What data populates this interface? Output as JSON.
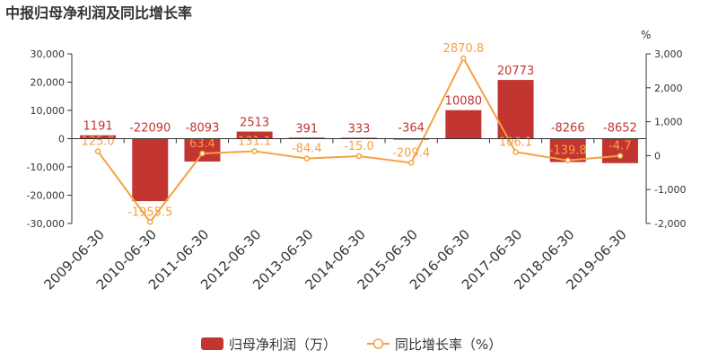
{
  "chart_data": {
    "type": "bar",
    "title": "中报归母净利润及同比增长率",
    "categories": [
      "2009-06-30",
      "2010-06-30",
      "2011-06-30",
      "2012-06-30",
      "2013-06-30",
      "2014-06-30",
      "2015-06-30",
      "2016-06-30",
      "2017-06-30",
      "2018-06-30",
      "2019-06-30"
    ],
    "series": [
      {
        "name": "归母净利润（万）",
        "type": "bar",
        "axis": "left",
        "color": "#c23531",
        "values": [
          1191,
          -22090,
          -8093,
          2513,
          391,
          333,
          -364,
          10080,
          20773,
          -8266,
          -8652
        ],
        "labels": [
          "1191",
          "-22090",
          "-8093",
          "2513",
          "391",
          "333",
          "-364",
          "10080",
          "20773",
          "-8266",
          "-8652"
        ]
      },
      {
        "name": "同比增长率（%）",
        "type": "line",
        "axis": "right",
        "color": "#f5a142",
        "values": [
          125.0,
          -1955.5,
          63.4,
          131.1,
          -84.4,
          -15.0,
          -209.4,
          2870.8,
          106.1,
          -139.8,
          -4.7
        ],
        "labels": [
          "125.0",
          "-1955.5",
          "63.4",
          "131.1",
          "-84.4",
          "-15.0",
          "-209.4",
          "2870.8",
          "106.1",
          "-139.8",
          "-4.7"
        ]
      }
    ],
    "y_left": {
      "ylim": [
        -30000,
        30000
      ],
      "ticks": [
        30000,
        20000,
        10000,
        0,
        -10000,
        -20000,
        -30000
      ],
      "tick_labels": [
        "30,000",
        "20,000",
        "10,000",
        "0",
        "-10,000",
        "-20,000",
        "-30,000"
      ]
    },
    "y_right": {
      "ylim": [
        -2000,
        3000
      ],
      "ticks": [
        3000,
        2000,
        1000,
        0,
        -1000,
        -2000
      ],
      "tick_labels": [
        "3,000",
        "2,000",
        "1,000",
        "0",
        "-1,000",
        "-2,000"
      ],
      "unit": "%"
    },
    "legend": {
      "position": "bottom-center"
    },
    "grid": false
  }
}
